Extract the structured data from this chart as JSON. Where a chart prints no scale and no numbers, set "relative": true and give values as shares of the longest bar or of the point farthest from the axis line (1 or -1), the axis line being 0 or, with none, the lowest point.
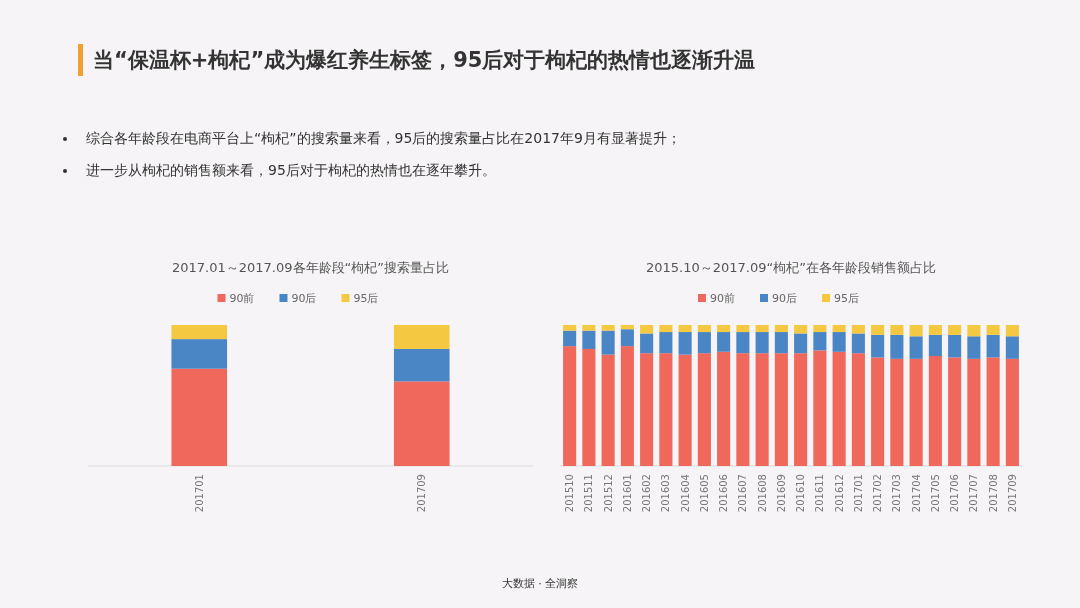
{
  "chart_data": [
    {
      "type": "other",
      "title": "当“保温杯+枸杞”成为爆红养生标签，95后对于枸杞的热情也逐渐升温",
      "annotations": [
        "综合各年龄段在电商平台上“枸杞”的搜索量来看，95后的搜索量占比在2017年9月有显著提升；",
        "进一步从枸杞的销售额来看，95后对于枸杞的热情也在逐年攀升。",
        "大数据 · 全洞察"
      ]
    },
    {
      "type": "bar",
      "title": "2017.01～2017.09各年龄段“枸杞”搜索量占比",
      "stacked": true,
      "relative": true,
      "legend": "top",
      "categories": [
        "201701",
        "201709"
      ],
      "series": [
        {
          "name": "90前",
          "color": "#f0675b",
          "values": [
            0.69,
            0.6
          ]
        },
        {
          "name": "90后",
          "color": "#4a86c5",
          "values": [
            0.21,
            0.23
          ]
        },
        {
          "name": "95后",
          "color": "#f5c842",
          "values": [
            0.1,
            0.17
          ]
        }
      ]
    },
    {
      "type": "bar",
      "title": "2015.10～2017.09“枸杞”在各年龄段销售额占比",
      "stacked": true,
      "relative": true,
      "legend": "top",
      "categories": [
        "201510",
        "201511",
        "201512",
        "201601",
        "201602",
        "201603",
        "201604",
        "201605",
        "201606",
        "201607",
        "201608",
        "201609",
        "201610",
        "201611",
        "201612",
        "201701",
        "201702",
        "201703",
        "201704",
        "201705",
        "201706",
        "201707",
        "201708",
        "201709"
      ],
      "series": [
        {
          "name": "90前",
          "color": "#f0675b",
          "values": [
            0.85,
            0.83,
            0.79,
            0.85,
            0.8,
            0.8,
            0.79,
            0.8,
            0.81,
            0.8,
            0.8,
            0.8,
            0.8,
            0.82,
            0.81,
            0.8,
            0.77,
            0.76,
            0.76,
            0.78,
            0.77,
            0.76,
            0.77,
            0.76
          ]
        },
        {
          "name": "90后",
          "color": "#4a86c5",
          "values": [
            0.11,
            0.13,
            0.17,
            0.12,
            0.14,
            0.15,
            0.16,
            0.15,
            0.14,
            0.15,
            0.15,
            0.15,
            0.14,
            0.13,
            0.14,
            0.14,
            0.16,
            0.17,
            0.16,
            0.15,
            0.16,
            0.16,
            0.16,
            0.16
          ]
        },
        {
          "name": "95后",
          "color": "#f5c842",
          "values": [
            0.04,
            0.04,
            0.04,
            0.03,
            0.06,
            0.05,
            0.05,
            0.05,
            0.05,
            0.05,
            0.05,
            0.05,
            0.06,
            0.05,
            0.05,
            0.06,
            0.07,
            0.07,
            0.08,
            0.07,
            0.07,
            0.08,
            0.07,
            0.08
          ]
        }
      ]
    }
  ]
}
